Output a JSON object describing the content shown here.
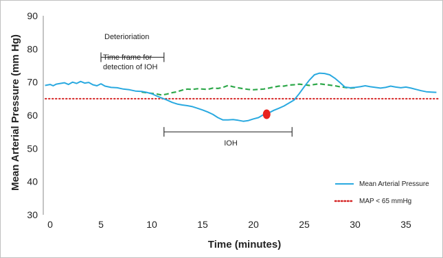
{
  "chart_data": {
    "type": "line",
    "xlabel": "Time (minutes)",
    "ylabel": "Mean Arterial Pressure (mm Hg)",
    "xlim": [
      -1,
      38
    ],
    "ylim": [
      30,
      90
    ],
    "xticks": [
      0,
      5,
      10,
      15,
      20,
      25,
      30,
      35
    ],
    "yticks": [
      30,
      40,
      50,
      60,
      70,
      80,
      90
    ],
    "grid": false,
    "legend_position": "bottom-right",
    "colors": {
      "map_line": "#29a9e0",
      "threshold": "#d42020",
      "counterfactual": "#2ea84a",
      "event_marker": "#e8231f",
      "bracket": "#333333"
    },
    "series": [
      {
        "name": "Mean Arterial Pressure",
        "style": "solid",
        "color": "#29a9e0",
        "points": [
          [
            -0.5,
            69.0
          ],
          [
            0.0,
            69.3
          ],
          [
            0.3,
            68.9
          ],
          [
            0.6,
            69.4
          ],
          [
            1.0,
            69.6
          ],
          [
            1.4,
            69.8
          ],
          [
            1.8,
            69.3
          ],
          [
            2.2,
            70.0
          ],
          [
            2.6,
            69.6
          ],
          [
            3.0,
            70.2
          ],
          [
            3.4,
            69.7
          ],
          [
            3.8,
            69.9
          ],
          [
            4.2,
            69.2
          ],
          [
            4.6,
            68.9
          ],
          [
            5.0,
            69.5
          ],
          [
            5.4,
            68.8
          ],
          [
            6.0,
            68.4
          ],
          [
            6.6,
            68.3
          ],
          [
            7.2,
            67.9
          ],
          [
            7.8,
            67.7
          ],
          [
            8.4,
            67.3
          ],
          [
            9.0,
            67.2
          ],
          [
            9.5,
            66.9
          ],
          [
            10.0,
            66.5
          ],
          [
            10.5,
            65.8
          ],
          [
            11.0,
            65.2
          ],
          [
            11.5,
            64.6
          ],
          [
            12.0,
            63.9
          ],
          [
            12.5,
            63.4
          ],
          [
            13.0,
            63.1
          ],
          [
            13.5,
            62.9
          ],
          [
            14.0,
            62.6
          ],
          [
            14.5,
            62.1
          ],
          [
            15.0,
            61.6
          ],
          [
            15.5,
            61.0
          ],
          [
            16.0,
            60.3
          ],
          [
            16.5,
            59.3
          ],
          [
            17.0,
            58.6
          ],
          [
            17.5,
            58.6
          ],
          [
            18.0,
            58.7
          ],
          [
            18.5,
            58.5
          ],
          [
            19.0,
            58.2
          ],
          [
            19.5,
            58.4
          ],
          [
            20.0,
            58.9
          ],
          [
            20.5,
            59.3
          ],
          [
            21.0,
            60.2
          ],
          [
            21.5,
            60.7
          ],
          [
            22.0,
            61.5
          ],
          [
            22.5,
            62.1
          ],
          [
            23.0,
            62.8
          ],
          [
            23.5,
            63.7
          ],
          [
            24.0,
            64.6
          ],
          [
            24.5,
            66.5
          ],
          [
            25.0,
            68.6
          ],
          [
            25.5,
            70.6
          ],
          [
            26.0,
            72.2
          ],
          [
            26.5,
            72.7
          ],
          [
            27.0,
            72.6
          ],
          [
            27.5,
            72.2
          ],
          [
            28.0,
            71.2
          ],
          [
            28.5,
            69.9
          ],
          [
            29.0,
            68.5
          ],
          [
            29.5,
            68.3
          ],
          [
            30.0,
            68.4
          ],
          [
            30.5,
            68.6
          ],
          [
            31.0,
            68.9
          ],
          [
            31.5,
            68.6
          ],
          [
            32.0,
            68.4
          ],
          [
            32.5,
            68.2
          ],
          [
            33.0,
            68.4
          ],
          [
            33.5,
            68.8
          ],
          [
            34.0,
            68.5
          ],
          [
            34.5,
            68.3
          ],
          [
            35.0,
            68.5
          ],
          [
            35.5,
            68.2
          ],
          [
            36.0,
            67.8
          ],
          [
            36.5,
            67.4
          ],
          [
            37.0,
            67.1
          ],
          [
            37.5,
            67.0
          ],
          [
            38.0,
            66.9
          ]
        ]
      },
      {
        "name": "MAP < 65 mmHg",
        "style": "dotted",
        "color": "#d42020",
        "points": [
          [
            -1,
            65
          ],
          [
            38,
            65
          ]
        ]
      },
      {
        "style": "dashed",
        "color": "#2ea84a",
        "points": [
          [
            9.0,
            67.0
          ],
          [
            9.5,
            66.8
          ],
          [
            10.0,
            66.6
          ],
          [
            10.5,
            66.4
          ],
          [
            11.0,
            66.1
          ],
          [
            11.5,
            66.4
          ],
          [
            12.0,
            66.8
          ],
          [
            12.5,
            67.1
          ],
          [
            13.0,
            67.6
          ],
          [
            13.5,
            67.9
          ],
          [
            14.0,
            67.8
          ],
          [
            14.5,
            68.0
          ],
          [
            15.0,
            67.9
          ],
          [
            15.5,
            67.8
          ],
          [
            16.0,
            68.2
          ],
          [
            16.5,
            68.1
          ],
          [
            17.0,
            68.4
          ],
          [
            17.5,
            69.0
          ],
          [
            18.0,
            68.6
          ],
          [
            18.5,
            68.3
          ],
          [
            19.0,
            68.0
          ],
          [
            19.5,
            67.8
          ],
          [
            20.0,
            67.7
          ],
          [
            20.5,
            67.8
          ],
          [
            21.0,
            67.9
          ],
          [
            21.5,
            68.2
          ],
          [
            22.0,
            68.5
          ],
          [
            22.5,
            68.8
          ],
          [
            23.0,
            68.8
          ],
          [
            23.5,
            69.1
          ],
          [
            24.0,
            69.2
          ],
          [
            24.5,
            69.4
          ],
          [
            25.0,
            69.2
          ],
          [
            25.5,
            69.0
          ],
          [
            26.0,
            69.3
          ],
          [
            26.5,
            69.5
          ],
          [
            27.0,
            69.3
          ],
          [
            27.5,
            69.1
          ],
          [
            28.0,
            68.9
          ],
          [
            28.5,
            68.6
          ],
          [
            29.0,
            68.4
          ],
          [
            29.5,
            68.2
          ],
          [
            30.0,
            68.3
          ]
        ]
      }
    ],
    "event_marker": {
      "x": 21.3,
      "y": 60.3
    },
    "annotations": [
      {
        "text": "Deterioriation",
        "x_start": 5.0,
        "x_end": 11.2,
        "y": 77.5
      },
      {
        "text": "Time frame for detection of IOH",
        "lines": [
          "Time frame for",
          "detection of IOH"
        ]
      },
      {
        "text": "IOH",
        "x_start": 11.2,
        "x_end": 23.8,
        "y": 55.0
      }
    ],
    "legend": [
      {
        "label": "Mean Arterial Pressure",
        "style": "solid",
        "color": "#29a9e0"
      },
      {
        "label": "MAP < 65 mmHg",
        "style": "dotted",
        "color": "#d42020"
      }
    ]
  }
}
